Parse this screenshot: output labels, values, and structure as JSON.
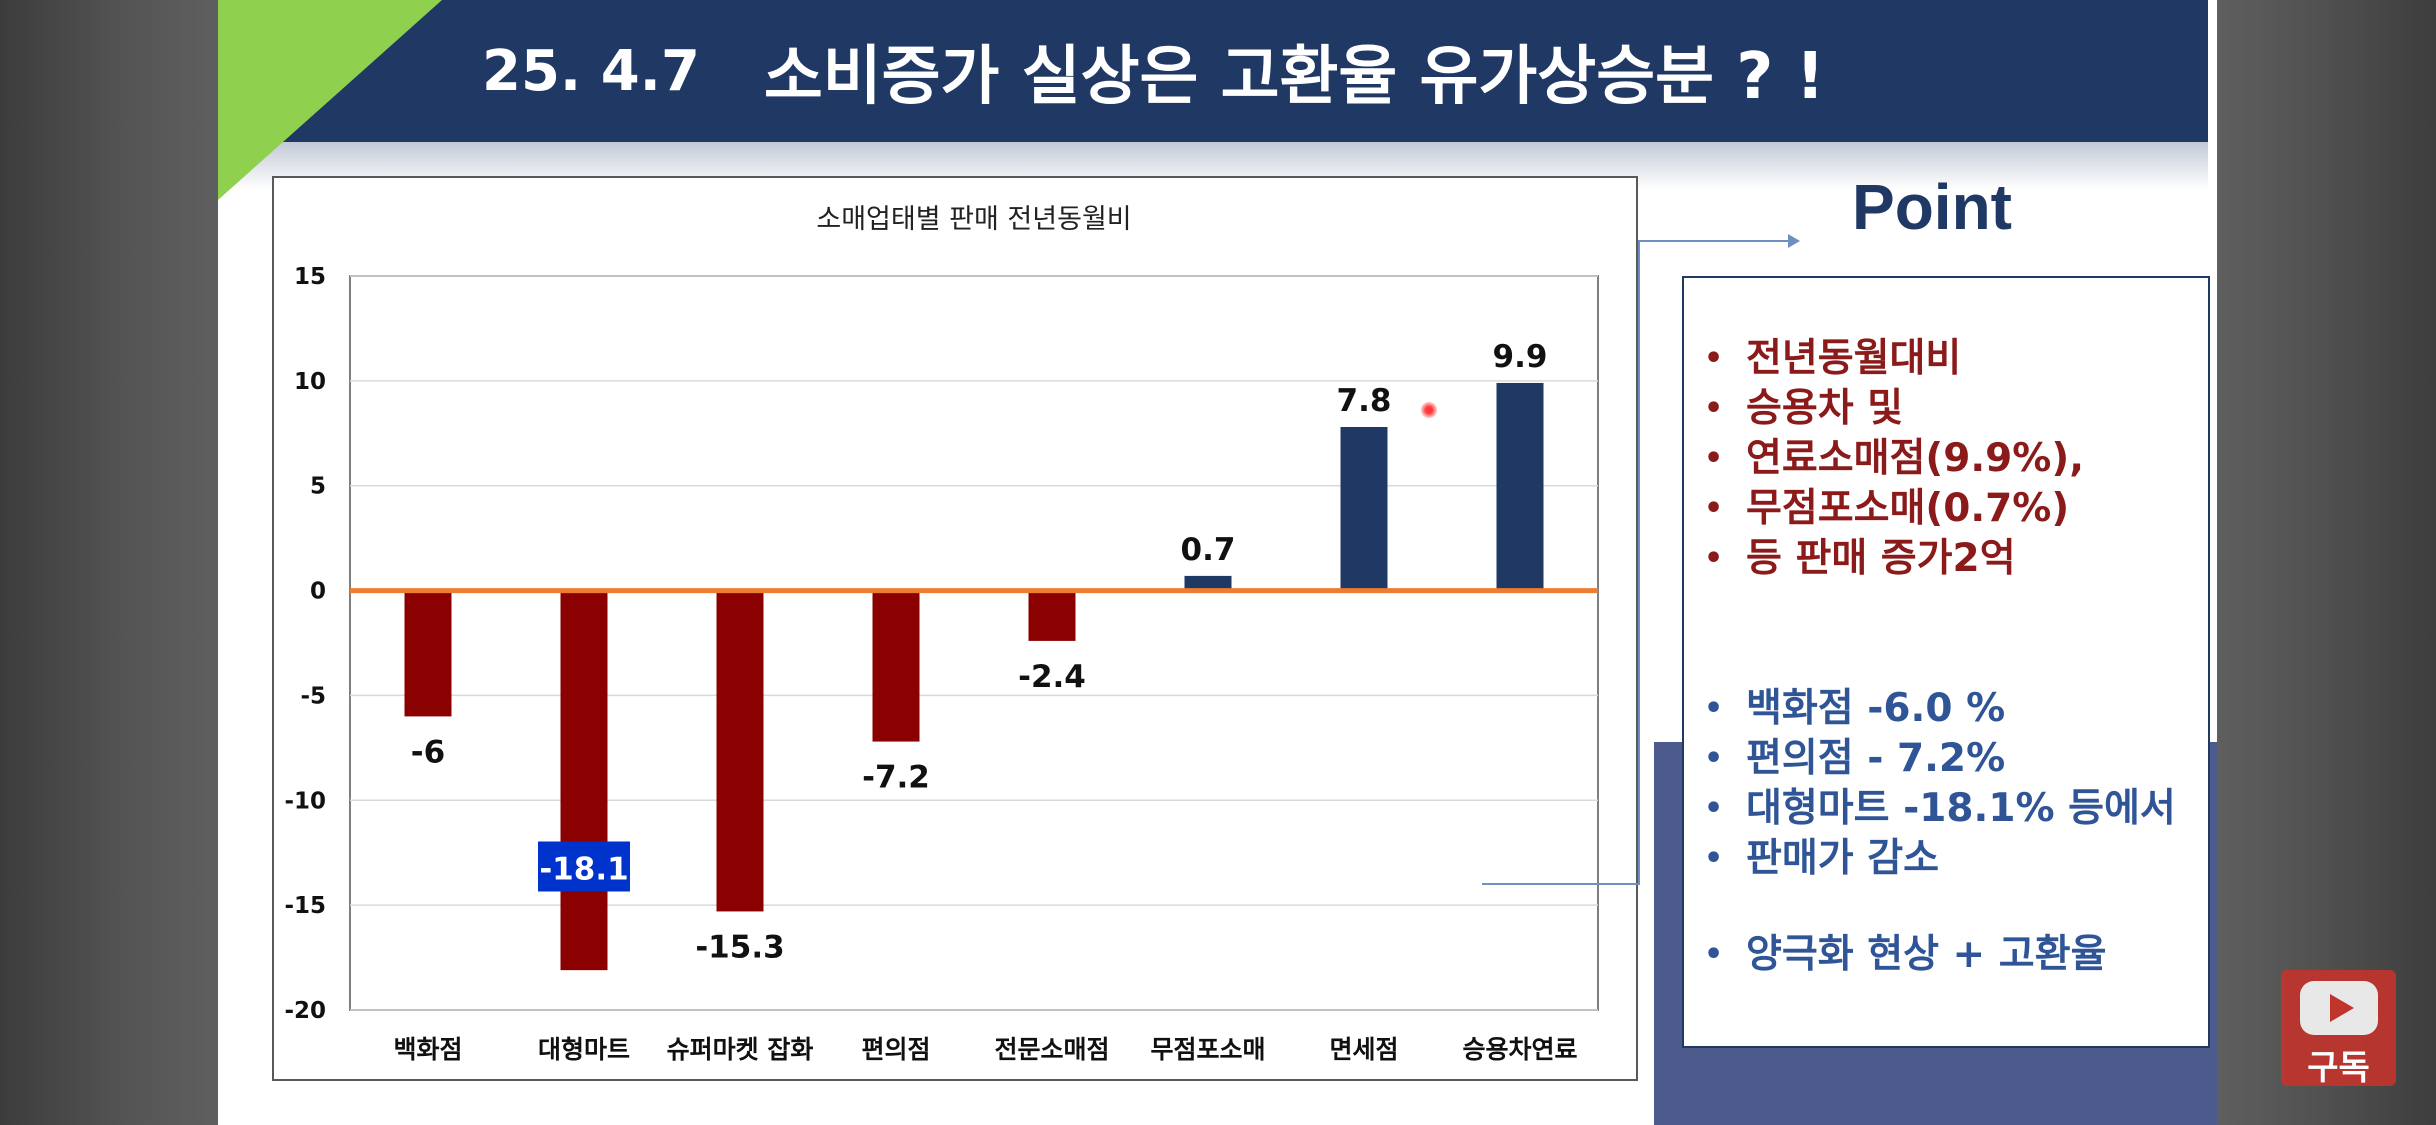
{
  "slide": {
    "date": "25. 4.7",
    "title": "소비증가 실상은  고환율 유가상승분 ? !"
  },
  "point": {
    "heading": "Point",
    "increase_items": [
      "전년동월대비",
      "승용차 및",
      "연료소매점(9.9%),",
      "무점포소매(0.7%)",
      "등 판매 증가2억"
    ],
    "decrease_items": [
      "백화점  -6.0 %",
      "편의점  - 7.2%",
      "대형마트 -18.1% 등에서",
      "판매가 감소"
    ],
    "summary_items": [
      "양극화 현상 + 고환율"
    ]
  },
  "subscribe": {
    "label": "구독",
    "icon": "youtube-play-icon"
  },
  "colors": {
    "negative_bar": "#8b0000",
    "positive_bar": "#1f3864",
    "zero_line": "#ed7d31",
    "highlight_label_bg": "#0033cc",
    "banner": "#1f3864",
    "accent_triangle": "#8fd14f"
  },
  "chart_data": {
    "type": "bar",
    "title": "소매업태별 판매 전년동월비",
    "categories": [
      "백화점",
      "대형마트",
      "슈퍼마켓 잡화",
      "편의점",
      "전문소매점",
      "무점포소매",
      "면세점",
      "승용차연료"
    ],
    "values": [
      -6,
      -18.1,
      -15.3,
      -7.2,
      -2.4,
      0.7,
      7.8,
      9.9
    ],
    "value_labels": [
      "-6",
      "-18.1",
      "-15.3",
      "-7.2",
      "-2.4",
      "0.7",
      "7.8",
      "9.9"
    ],
    "highlighted_index": 1,
    "ylim": [
      -20,
      15
    ],
    "yticks": [
      15,
      10,
      5,
      0,
      -5,
      -10,
      -15,
      -20
    ],
    "xlabel": "",
    "ylabel": "",
    "grid": true,
    "legend": "none"
  }
}
